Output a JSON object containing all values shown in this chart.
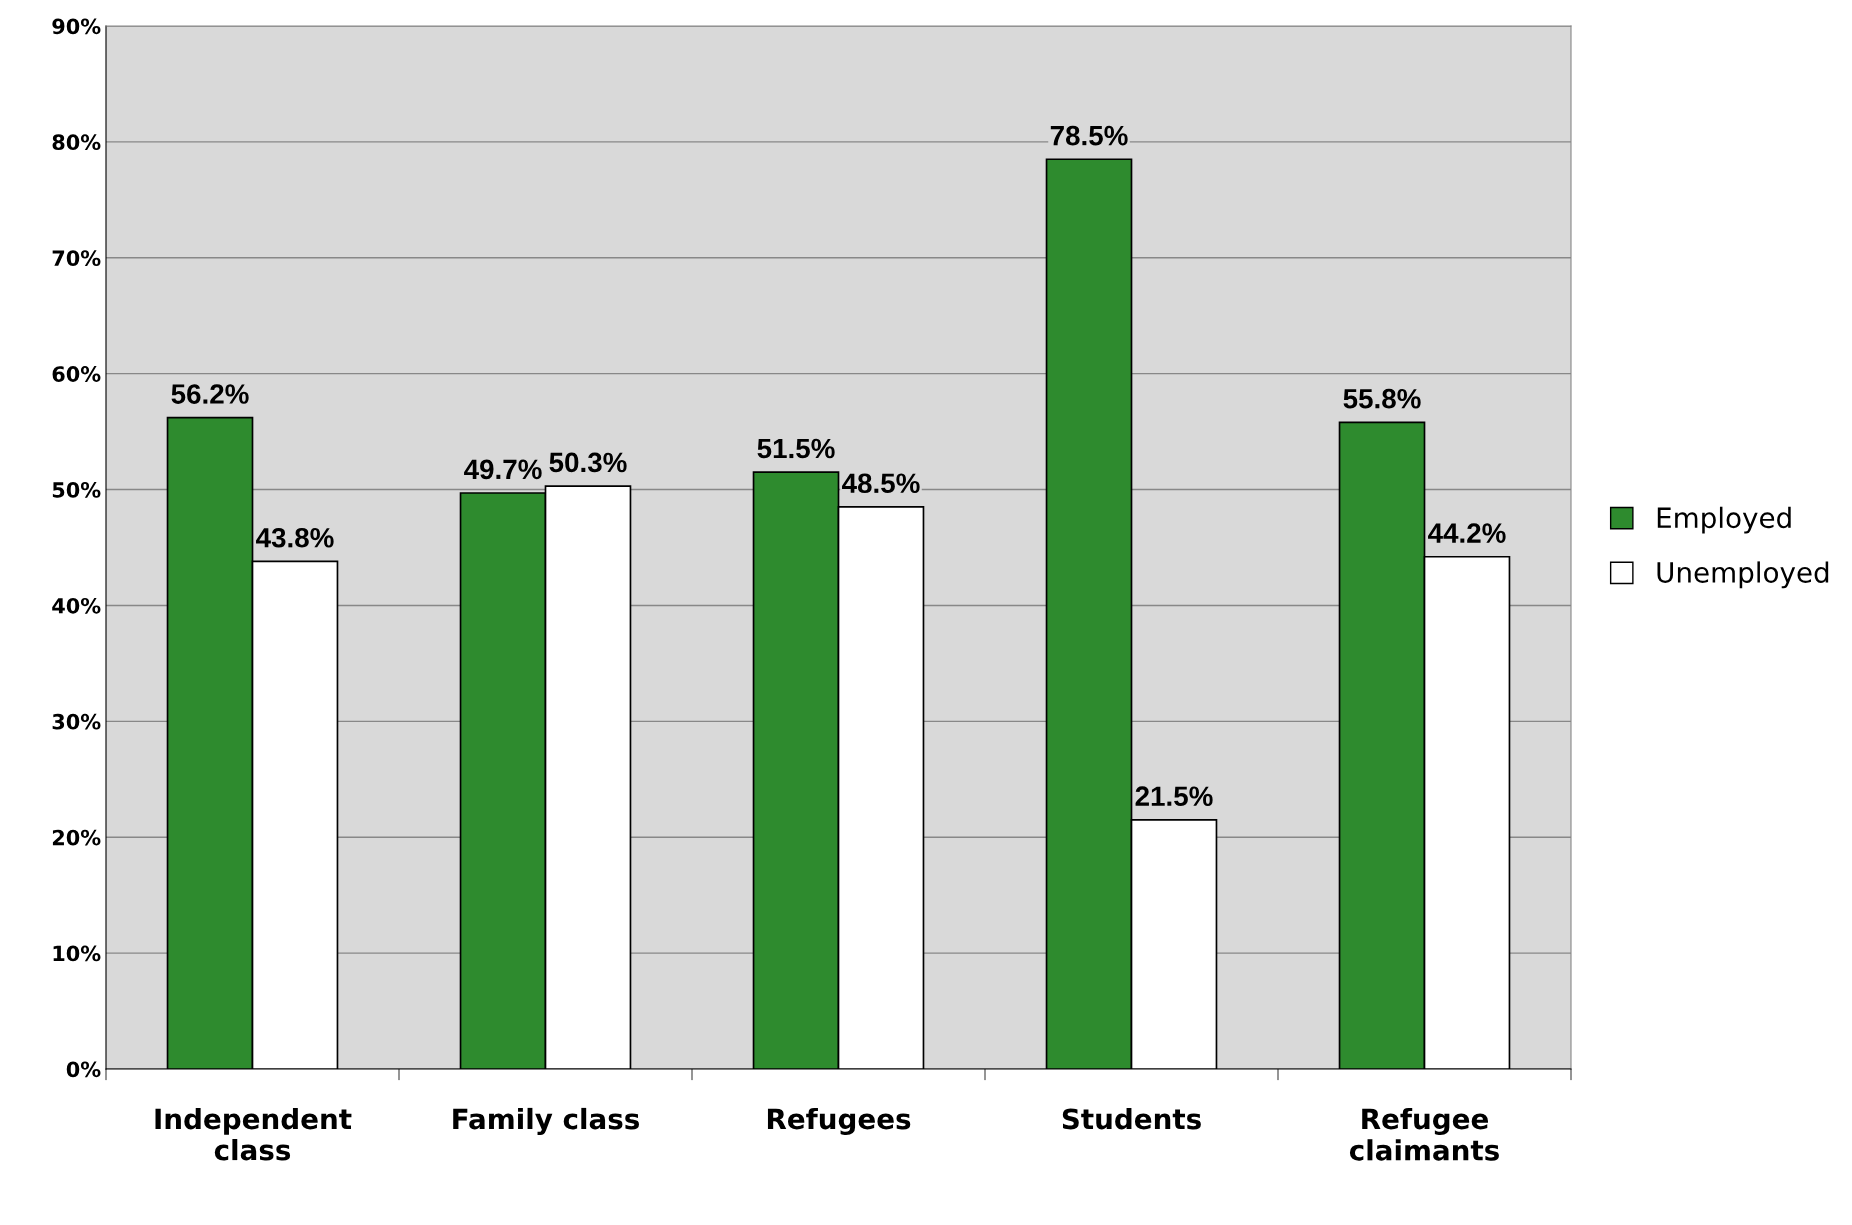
{
  "chart_data": {
    "type": "bar",
    "categories": [
      "Independent\nclass",
      "Family class",
      "Refugees",
      "Students",
      "Refugee\nclaimants"
    ],
    "series": [
      {
        "name": "Employed",
        "color": "#2e8b2e",
        "values": [
          56.2,
          49.7,
          51.5,
          78.5,
          55.8
        ],
        "value_labels": [
          "56.2%",
          "49.7%",
          "51.5%",
          "78.5%",
          "55.8%"
        ]
      },
      {
        "name": "Unemployed",
        "color": "#ffffff",
        "values": [
          43.8,
          50.3,
          48.5,
          21.5,
          44.2
        ],
        "value_labels": [
          "43.8%",
          "50.3%",
          "48.5%",
          "21.5%",
          "44.2%"
        ]
      }
    ],
    "ylim": [
      0,
      90
    ],
    "yticks": [
      {
        "value": 0,
        "label": "0%"
      },
      {
        "value": 10,
        "label": "10%"
      },
      {
        "value": 20,
        "label": "20%"
      },
      {
        "value": 30,
        "label": "30%"
      },
      {
        "value": 40,
        "label": "40%"
      },
      {
        "value": 50,
        "label": "50%"
      },
      {
        "value": 60,
        "label": "60%"
      },
      {
        "value": 70,
        "label": "70%"
      },
      {
        "value": 80,
        "label": "80%"
      },
      {
        "value": 90,
        "label": "90%"
      }
    ],
    "grid": "y",
    "legend": "right"
  }
}
